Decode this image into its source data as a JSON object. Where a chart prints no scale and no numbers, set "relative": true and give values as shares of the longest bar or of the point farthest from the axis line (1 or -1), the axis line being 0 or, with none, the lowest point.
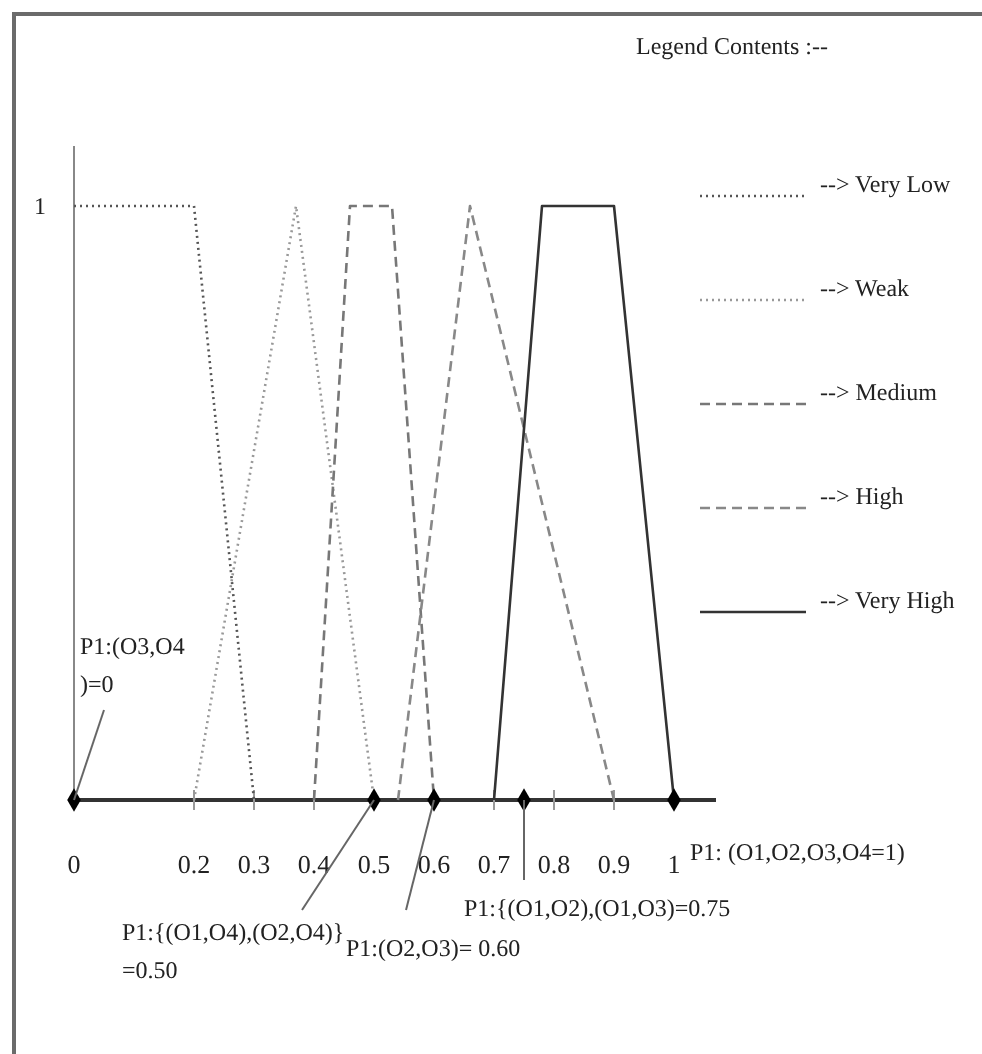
{
  "chart_data": {
    "type": "line",
    "legend_title": "Legend Contents :--",
    "legend": "right",
    "xlim": [
      0,
      1.07
    ],
    "relative": true,
    "xticks": [
      0,
      0.2,
      0.3,
      0.4,
      0.5,
      0.6,
      0.7,
      0.8,
      0.9,
      1
    ],
    "series": [
      {
        "name": "--> Very Low",
        "color": "#555555",
        "line_style": "dotted",
        "x": [
          0,
          0.2,
          0.3
        ],
        "values": [
          1,
          1,
          0
        ]
      },
      {
        "name": "--> Weak",
        "color": "#999999",
        "line_style": "dotted",
        "x": [
          0.2,
          0.37,
          0.5
        ],
        "values": [
          0,
          1,
          0
        ]
      },
      {
        "name": "--> Medium",
        "color": "#777777",
        "line_style": "dashed",
        "x": [
          0.4,
          0.46,
          0.53,
          0.6
        ],
        "values": [
          0,
          1,
          1,
          0
        ]
      },
      {
        "name": "--> High",
        "color": "#888888",
        "line_style": "dashed",
        "x": [
          0.54,
          0.66,
          0.9
        ],
        "values": [
          0,
          1,
          0
        ]
      },
      {
        "name": "--> Very High",
        "color": "#333333",
        "line_style": "solid",
        "x": [
          0.7,
          0.78,
          0.9,
          1
        ],
        "values": [
          0,
          1,
          1,
          0
        ]
      },
      {
        "type": "scatter",
        "color": "#000000",
        "marker": "diamond",
        "x": [
          0,
          0.5,
          0.6,
          0.75,
          1
        ],
        "values": [
          0,
          0,
          0,
          0,
          0
        ]
      }
    ],
    "annotations": [
      {
        "text": "1",
        "x": 0,
        "y": 1
      },
      {
        "text": "P1:(O3,O4\n)=0",
        "x": 0,
        "y": 0
      },
      {
        "text": "P1:{(O1,O4),(O2,O4)}\n=0.50",
        "x": 0.5,
        "y": 0
      },
      {
        "text": "P1:(O2,O3)= 0.60",
        "x": 0.6,
        "y": 0
      },
      {
        "text": "P1:{(O1,O2),(O1,O3)=0.75",
        "x": 0.75,
        "y": 0
      },
      {
        "text": "P1: (O1,O2,O3,O4=1)",
        "x": 1,
        "y": 0
      }
    ]
  }
}
